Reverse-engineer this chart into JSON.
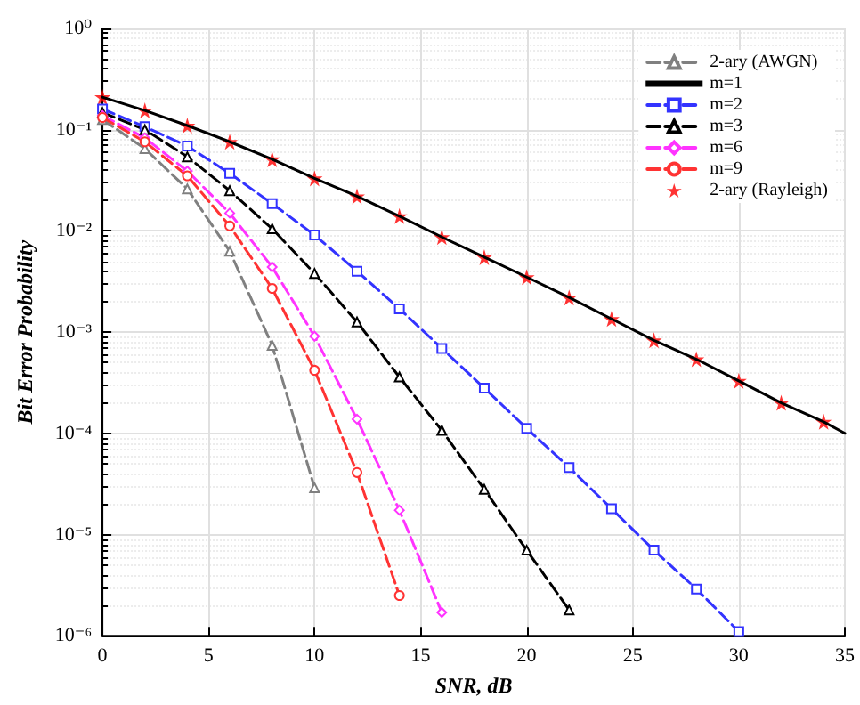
{
  "chart_data": {
    "type": "line",
    "xlabel": "SNR, dB",
    "ylabel": "Bit Error Probability",
    "log": "y",
    "grid": true,
    "legend": "top right",
    "xlim": [
      0,
      35
    ],
    "xticks": [
      0,
      5,
      10,
      15,
      20,
      25,
      30,
      35
    ],
    "ylim": [
      1e-06,
      1
    ],
    "yticks": [
      {
        "value": 1e-06,
        "label": "10⁻⁶"
      },
      {
        "value": 1e-05,
        "label": "10⁻⁵"
      },
      {
        "value": 0.0001,
        "label": "10⁻⁴"
      },
      {
        "value": 0.001,
        "label": "10⁻³"
      },
      {
        "value": 0.01,
        "label": "10⁻²"
      },
      {
        "value": 0.1,
        "label": "10⁻¹"
      },
      {
        "value": 1,
        "label": "10⁰"
      }
    ],
    "series": [
      {
        "name": "2-ary (AWGN)",
        "color": "#808080",
        "marker": "triangle",
        "line_style": "dashed",
        "x": [
          0,
          2,
          4,
          6,
          8,
          10
        ],
        "values": [
          0.126,
          0.065,
          0.026,
          0.0063,
          0.00074,
          2.9e-05
        ]
      },
      {
        "name": "m=1",
        "color": "#000000",
        "marker": "none",
        "line_style": "solid",
        "x": [
          0,
          2,
          4,
          6,
          8,
          10,
          12,
          14,
          16,
          18,
          20,
          22,
          24,
          26,
          28,
          30,
          32,
          34,
          35
        ],
        "values": [
          0.21,
          0.155,
          0.11,
          0.076,
          0.051,
          0.033,
          0.022,
          0.014,
          0.0087,
          0.0055,
          0.0035,
          0.0022,
          0.00135,
          0.00083,
          0.00054,
          0.00033,
          0.0002,
          0.00013,
          0.0001
        ]
      },
      {
        "name": "m=2",
        "color": "#3333ff",
        "marker": "square",
        "line_style": "dashed",
        "x": [
          0,
          2,
          4,
          6,
          8,
          10,
          12,
          14,
          16,
          18,
          20,
          22,
          24,
          26,
          28,
          30
        ],
        "values": [
          0.16,
          0.107,
          0.069,
          0.037,
          0.0186,
          0.0091,
          0.004,
          0.0017,
          0.00069,
          0.00028,
          0.000112,
          4.6e-05,
          1.8e-05,
          7e-06,
          2.9e-06,
          1.1e-06
        ]
      },
      {
        "name": "m=3",
        "color": "#000000",
        "marker": "triangle",
        "line_style": "dashed",
        "x": [
          0,
          2,
          4,
          6,
          8,
          10,
          12,
          14,
          16,
          18,
          20,
          22
        ],
        "values": [
          0.148,
          0.1,
          0.054,
          0.025,
          0.0105,
          0.0038,
          0.00126,
          0.00036,
          0.000107,
          2.8e-05,
          7e-06,
          1.8e-06
        ]
      },
      {
        "name": "m=6",
        "color": "#ff33ff",
        "marker": "diamond",
        "line_style": "dashed",
        "x": [
          0,
          2,
          4,
          6,
          8,
          10,
          12,
          14,
          16
        ],
        "values": [
          0.138,
          0.083,
          0.039,
          0.015,
          0.0044,
          0.00091,
          0.000138,
          1.74e-05,
          1.7e-06
        ]
      },
      {
        "name": "m=9",
        "color": "#ff3333",
        "marker": "circle",
        "line_style": "dashed",
        "x": [
          0,
          2,
          4,
          6,
          8,
          10,
          12,
          14
        ],
        "values": [
          0.132,
          0.076,
          0.035,
          0.0112,
          0.0027,
          0.00042,
          4.1e-05,
          2.5e-06
        ]
      },
      {
        "name": "2-ary (Rayleigh)",
        "type": "scatter",
        "color": "#ff0000",
        "marker": "star",
        "x": [
          0,
          2,
          4,
          6,
          8,
          10,
          12,
          14,
          16,
          18,
          20,
          22,
          24,
          26,
          28,
          30,
          32,
          34
        ],
        "values": [
          0.21,
          0.155,
          0.11,
          0.076,
          0.051,
          0.033,
          0.022,
          0.014,
          0.0087,
          0.0055,
          0.0035,
          0.0022,
          0.00135,
          0.00083,
          0.00054,
          0.00033,
          0.0002,
          0.00013
        ]
      }
    ]
  }
}
